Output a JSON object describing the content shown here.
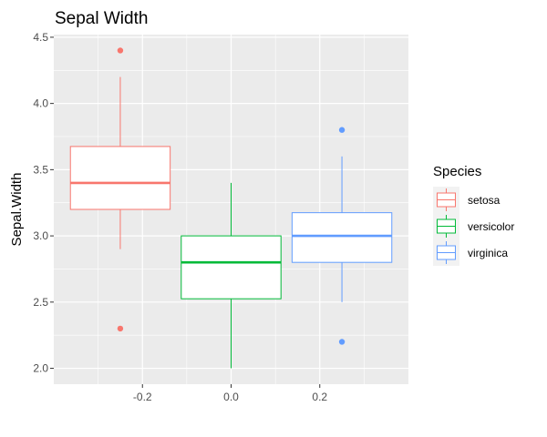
{
  "chart_data": {
    "type": "boxplot",
    "title": "Sepal Width",
    "xlabel": "",
    "ylabel": "Sepal.Width",
    "xlim": [
      -0.4,
      0.4
    ],
    "ylim": [
      1.88,
      4.52
    ],
    "x_ticks": [
      -0.2,
      0.0,
      0.2
    ],
    "x_tick_labels": [
      "-0.2",
      "0.0",
      "0.2"
    ],
    "y_ticks": [
      2.0,
      2.5,
      3.0,
      3.5,
      4.0,
      4.5
    ],
    "y_tick_labels": [
      "2.0",
      "2.5",
      "3.0",
      "3.5",
      "4.0",
      "4.5"
    ],
    "grid": true,
    "legend": {
      "title": "Species",
      "position": "right",
      "entries": [
        "setosa",
        "versicolor",
        "virginica"
      ]
    },
    "series": [
      {
        "name": "setosa",
        "color": "#F8766D",
        "x_center": -0.25,
        "box_width": 0.225,
        "min": 2.9,
        "q1": 3.2,
        "median": 3.4,
        "q3": 3.675,
        "max": 4.2,
        "outliers": [
          4.4,
          2.3
        ]
      },
      {
        "name": "versicolor",
        "color": "#00BA38",
        "x_center": 0.0,
        "box_width": 0.225,
        "min": 2.0,
        "q1": 2.525,
        "median": 2.8,
        "q3": 3.0,
        "max": 3.4,
        "outliers": []
      },
      {
        "name": "virginica",
        "color": "#619CFF",
        "x_center": 0.25,
        "box_width": 0.225,
        "min": 2.5,
        "q1": 2.8,
        "median": 3.0,
        "q3": 3.175,
        "max": 3.6,
        "outliers": [
          3.8,
          2.2
        ]
      }
    ]
  }
}
